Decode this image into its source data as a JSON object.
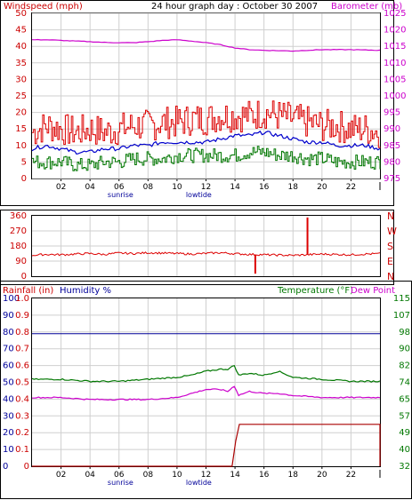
{
  "page": {
    "title": "24 hour graph day : October 30 2007"
  },
  "hour_labels": [
    "02",
    "04",
    "06",
    "08",
    "10",
    "12",
    "14",
    "16",
    "18",
    "20",
    "22"
  ],
  "event_labels": {
    "sunrise": "sunrise",
    "lowtide": "lowtide"
  },
  "colors": {
    "windspeed": "#dd0000",
    "wind_avg": "#0000cc",
    "wind_min": "#007700",
    "barometer": "#cc00cc",
    "direction": "#dd0000",
    "humidity": "#000099",
    "temperature": "#007700",
    "dewpoint": "#cc00cc",
    "rainfall": "#aa0000",
    "grid": "#cfcfcf",
    "axis_text_left": "#cc0000",
    "axis_text_right": "#cc00cc"
  },
  "chart_data": [
    {
      "id": "wind",
      "type": "line",
      "labels": {
        "left": "Windspeed (mph)",
        "right": "Barometer (mb)"
      },
      "x_range": [
        0,
        24
      ],
      "y_left": {
        "ticks": [
          "0",
          "5",
          "10",
          "15",
          "20",
          "25",
          "30",
          "35",
          "40",
          "45",
          "50"
        ],
        "range": [
          0,
          50
        ]
      },
      "y_right": {
        "ticks": [
          "975",
          "980",
          "985",
          "990",
          "995",
          "1000",
          "1005",
          "1010",
          "1015",
          "1020",
          "1025"
        ],
        "range": [
          975,
          1025
        ]
      },
      "series": [
        {
          "name": "Windspeed (mph)",
          "axis": "left",
          "x": [
            0,
            1,
            2,
            3,
            4,
            5,
            6,
            7,
            8,
            9,
            10,
            11,
            12,
            13,
            14,
            15,
            16,
            17,
            18,
            19,
            20,
            21,
            22,
            23,
            24
          ],
          "values": [
            14,
            16,
            15,
            14,
            15,
            14,
            15,
            16,
            16,
            17,
            17,
            18,
            18,
            19,
            19,
            19,
            20,
            19,
            18,
            17,
            16,
            16,
            15,
            15,
            14
          ]
        },
        {
          "name": "Wind average",
          "axis": "left",
          "x": [
            0,
            1,
            2,
            3,
            4,
            5,
            6,
            7,
            8,
            9,
            10,
            11,
            12,
            13,
            14,
            15,
            16,
            17,
            18,
            19,
            20,
            21,
            22,
            23,
            24
          ],
          "values": [
            9,
            10,
            9,
            8,
            8,
            9,
            9,
            10,
            10,
            11,
            11,
            11,
            11,
            12,
            13,
            13,
            14,
            13,
            12,
            11,
            11,
            10,
            10,
            10,
            9
          ]
        },
        {
          "name": "Wind minimum",
          "axis": "left",
          "x": [
            0,
            1,
            2,
            3,
            4,
            5,
            6,
            7,
            8,
            9,
            10,
            11,
            12,
            13,
            14,
            15,
            16,
            17,
            18,
            19,
            20,
            21,
            22,
            23,
            24
          ],
          "values": [
            5,
            5,
            5,
            4,
            4,
            5,
            5,
            6,
            6,
            6,
            7,
            7,
            7,
            7,
            7,
            8,
            8,
            7,
            7,
            6,
            6,
            5,
            5,
            5,
            5
          ]
        },
        {
          "name": "Barometer (mb)",
          "axis": "right",
          "x": [
            0,
            1,
            2,
            3,
            4,
            5,
            6,
            7,
            8,
            9,
            10,
            11,
            12,
            13,
            14,
            15,
            16,
            17,
            18,
            19,
            20,
            21,
            22,
            23,
            24
          ],
          "values": [
            1017,
            1017,
            1016.8,
            1016.6,
            1016.4,
            1016.2,
            1016.1,
            1016.1,
            1016.4,
            1016.8,
            1017,
            1016.6,
            1016.1,
            1015.5,
            1014.5,
            1014,
            1013.8,
            1013.7,
            1013.6,
            1013.8,
            1014,
            1014,
            1014,
            1013.9,
            1013.8
          ]
        }
      ]
    },
    {
      "id": "direction",
      "type": "line",
      "x_range": [
        0,
        24
      ],
      "y_left": {
        "ticks": [
          "0",
          "90",
          "180",
          "270",
          "360"
        ],
        "range": [
          0,
          360
        ]
      },
      "y_right": {
        "ticks": [
          "N",
          "E",
          "S",
          "W",
          "N"
        ]
      },
      "series": [
        {
          "name": "Wind direction",
          "axis": "left",
          "x": [
            0,
            1,
            2,
            3,
            4,
            5,
            6,
            7,
            8,
            9,
            10,
            11,
            12,
            13,
            14,
            15,
            16,
            17,
            18,
            19,
            20,
            21,
            22,
            23,
            24
          ],
          "values": [
            125,
            130,
            128,
            132,
            135,
            130,
            138,
            135,
            140,
            138,
            135,
            132,
            136,
            140,
            134,
            130,
            128,
            126,
            124,
            128,
            132,
            130,
            128,
            132,
            134
          ]
        }
      ],
      "spikes": [
        {
          "x": 15.4,
          "value": 15
        },
        {
          "x": 19.0,
          "value": 350
        }
      ]
    },
    {
      "id": "climate",
      "type": "line",
      "labels": {
        "left1": "Rainfall (in)",
        "left2": "Humidity %",
        "right1": "Temperature (°F)",
        "right2": "Dew Point"
      },
      "x_range": [
        0,
        24
      ],
      "y_rain": {
        "ticks": [
          "0",
          "0.1",
          "0.2",
          "0.3",
          "0.4",
          "0.5",
          "0.6",
          "0.7",
          "0.8",
          "0.9",
          "1.0"
        ],
        "range": [
          0,
          1
        ]
      },
      "y_humidity": {
        "ticks": [
          "0",
          "10",
          "20",
          "30",
          "40",
          "50",
          "60",
          "70",
          "80",
          "90",
          "100"
        ],
        "range": [
          0,
          100
        ]
      },
      "y_temp": {
        "ticks": [
          "32",
          "40",
          "49",
          "57",
          "65",
          "74",
          "82",
          "90",
          "98",
          "107",
          "115"
        ],
        "range": [
          32,
          115
        ]
      },
      "series": [
        {
          "name": "Humidity %",
          "axis": "humidity",
          "x": [
            0,
            24
          ],
          "values": [
            79,
            79
          ]
        },
        {
          "name": "Temperature (°F)",
          "axis": "temp",
          "x": [
            0,
            2,
            4,
            6,
            8,
            10,
            11,
            12,
            13,
            13.5,
            14,
            14.2,
            15,
            16,
            17,
            18,
            20,
            22,
            24
          ],
          "values": [
            75,
            75,
            74,
            74,
            75,
            76,
            77,
            79,
            80,
            80,
            82,
            77,
            78,
            77,
            79,
            76,
            75,
            74,
            74
          ]
        },
        {
          "name": "Dew Point",
          "axis": "temp",
          "x": [
            0,
            2,
            4,
            6,
            8,
            10,
            11,
            12,
            13,
            13.5,
            14,
            14.2,
            15,
            16,
            17,
            18,
            20,
            22,
            24
          ],
          "values": [
            66,
            66,
            65,
            65,
            65,
            66,
            68,
            70,
            70,
            69,
            72,
            67,
            69,
            68,
            68,
            67,
            66,
            66,
            66
          ]
        },
        {
          "name": "Rainfall (in)",
          "axis": "rain",
          "x": [
            0,
            13.8,
            14.05,
            14.3,
            24
          ],
          "values": [
            0,
            0,
            0.15,
            0.25,
            0.25
          ]
        }
      ]
    }
  ]
}
